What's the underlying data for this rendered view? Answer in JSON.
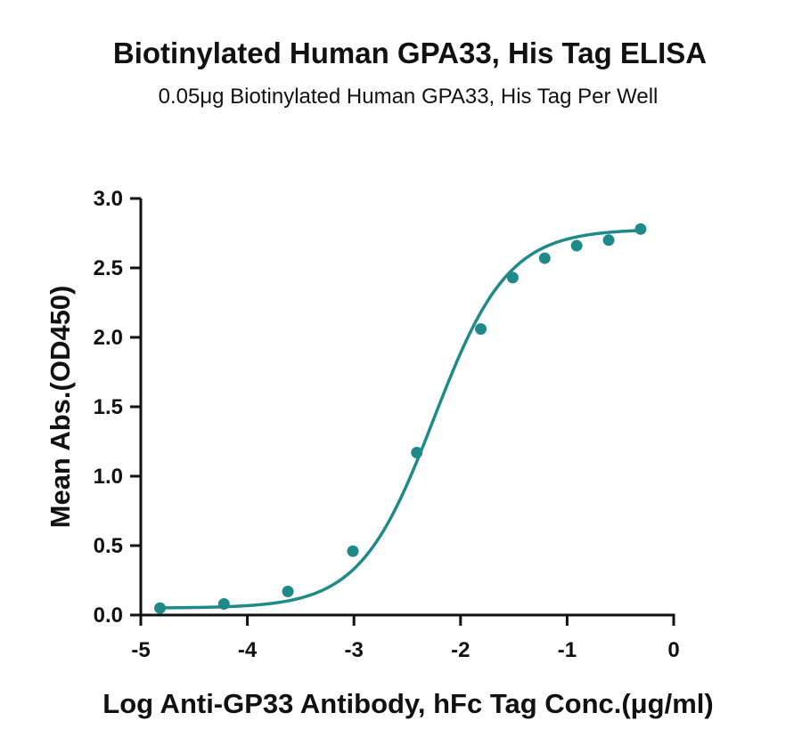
{
  "chart_data": {
    "type": "scatter",
    "title": "Biotinylated Human GPA33, His Tag ELISA",
    "subtitle": "0.05μg Biotinylated Human GPA33, His Tag Per Well",
    "xlabel": "Log Anti-GP33 Antibody, hFc Tag Conc.(μg/ml)",
    "ylabel": "Mean Abs.(OD450)",
    "xlim": [
      -5,
      0
    ],
    "ylim": [
      0,
      3
    ],
    "xticks": [
      "-5",
      "-4",
      "-3",
      "-2",
      "-1",
      "0"
    ],
    "yticks": [
      "0.0",
      "0.5",
      "1.0",
      "1.5",
      "2.0",
      "2.5",
      "3.0"
    ],
    "grid": false,
    "legend": "none",
    "series": [
      {
        "color": "#1f8a8a",
        "x": [
          -4.82,
          -4.22,
          -3.62,
          -3.01,
          -2.41,
          -1.81,
          -1.51,
          -1.21,
          -0.91,
          -0.61,
          -0.31
        ],
        "y": [
          0.05,
          0.08,
          0.17,
          0.46,
          1.17,
          2.06,
          2.43,
          2.57,
          2.66,
          2.7,
          2.78
        ],
        "fit": {
          "model": "4PL",
          "bottom": 0.05,
          "top": 2.78,
          "logEC50": -2.25,
          "hill": 1.25
        }
      }
    ]
  }
}
